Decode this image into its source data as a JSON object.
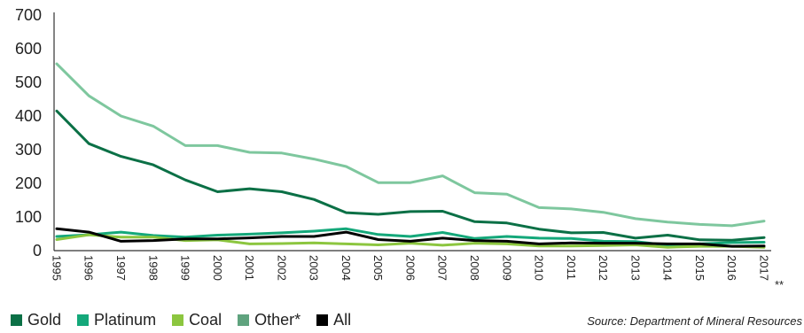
{
  "chart_data": {
    "type": "line",
    "title": "",
    "xlabel": "",
    "ylabel": "",
    "x": [
      "1995",
      "1996",
      "1997",
      "1998",
      "1999",
      "2000",
      "2001",
      "2002",
      "2003",
      "2004",
      "2005",
      "2006",
      "2007",
      "2008",
      "2009",
      "2010",
      "2011",
      "2012",
      "2013",
      "2014",
      "2015",
      "2016",
      "2017"
    ],
    "x_last_suffix": "**",
    "ylim": [
      0,
      700
    ],
    "yticks": [
      "0",
      "100",
      "200",
      "300",
      "400",
      "500",
      "600",
      "700"
    ],
    "series": [
      {
        "name": "Other*",
        "color": "#7ec79e",
        "values": [
          555,
          460,
          400,
          370,
          312,
          312,
          292,
          290,
          272,
          250,
          202,
          202,
          222,
          172,
          168,
          128,
          124,
          114,
          95,
          85,
          78,
          74,
          88
        ]
      },
      {
        "name": "Gold",
        "color": "#0b7046",
        "values": [
          415,
          318,
          280,
          255,
          210,
          175,
          184,
          175,
          152,
          113,
          108,
          116,
          117,
          86,
          82,
          64,
          53,
          54,
          37,
          46,
          32,
          31,
          39
        ]
      },
      {
        "name": "Platinum",
        "color": "#14a87a",
        "values": [
          42,
          47,
          55,
          45,
          40,
          46,
          49,
          53,
          58,
          65,
          48,
          42,
          54,
          36,
          42,
          37,
          36,
          28,
          27,
          16,
          20,
          24,
          25
        ]
      },
      {
        "name": "Coal",
        "color": "#8cc63f",
        "values": [
          33,
          47,
          40,
          40,
          30,
          32,
          20,
          21,
          23,
          20,
          17,
          22,
          16,
          22,
          20,
          14,
          14,
          15,
          17,
          10,
          13,
          13,
          10
        ]
      },
      {
        "name": "All",
        "color": "#000000",
        "values": [
          65,
          55,
          28,
          30,
          35,
          35,
          38,
          42,
          42,
          55,
          33,
          28,
          37,
          30,
          28,
          20,
          23,
          22,
          22,
          20,
          20,
          13,
          14
        ]
      }
    ],
    "legend": {
      "placement": "bottom-left",
      "items": [
        {
          "name": "Gold",
          "color": "#0b7046"
        },
        {
          "name": "Platinum",
          "color": "#14a87a"
        },
        {
          "name": "Coal",
          "color": "#8cc63f"
        },
        {
          "name": "Other*",
          "color": "#5fa37e"
        },
        {
          "name": "All",
          "color": "#000000"
        }
      ]
    },
    "grid": false,
    "source": "Source: Department of Mineral Resources"
  }
}
